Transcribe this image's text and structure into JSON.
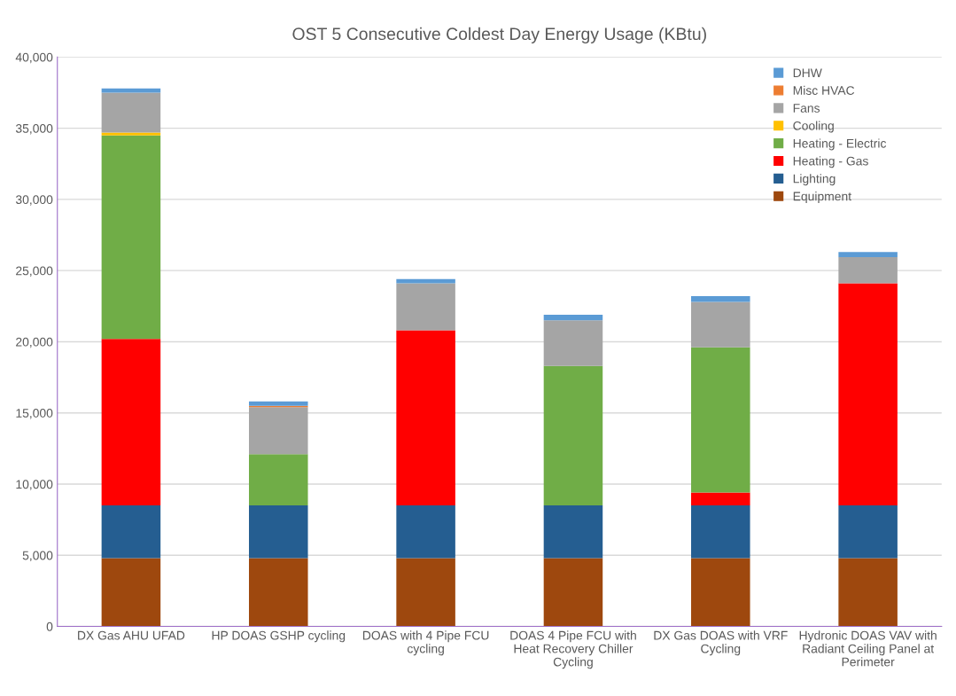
{
  "chart_data": {
    "type": "bar",
    "stacked": true,
    "title": "OST 5 Consecutive Coldest Day Energy Usage (KBtu)",
    "categories": [
      "DX Gas AHU UFAD",
      "HP DOAS GSHP cycling",
      "DOAS with 4 Pipe FCU cycling",
      "DOAS 4 Pipe FCU with Heat Recovery Chiller Cycling",
      "DX Gas DOAS with VRF Cycling",
      "Hydronic DOAS VAV with Radiant Ceiling Panel at Perimeter"
    ],
    "series": [
      {
        "name": "Equipment",
        "color": "#9e480e",
        "values": [
          4800,
          4800,
          4800,
          4800,
          4800,
          4800
        ]
      },
      {
        "name": "Lighting",
        "color": "#255e91",
        "values": [
          3700,
          3700,
          3700,
          3700,
          3700,
          3700
        ]
      },
      {
        "name": "Heating - Gas",
        "color": "#ff0000",
        "values": [
          11700,
          0,
          12300,
          0,
          900,
          15600
        ]
      },
      {
        "name": "Heating - Electric",
        "color": "#70ad47",
        "values": [
          14300,
          3600,
          0,
          9800,
          10200,
          0
        ]
      },
      {
        "name": "Cooling",
        "color": "#ffc000",
        "values": [
          200,
          0,
          0,
          0,
          0,
          0
        ]
      },
      {
        "name": "Fans",
        "color": "#a5a5a5",
        "values": [
          2800,
          3300,
          3300,
          3200,
          3200,
          1850
        ]
      },
      {
        "name": "Misc HVAC",
        "color": "#ed7d31",
        "values": [
          0,
          100,
          0,
          0,
          0,
          0
        ]
      },
      {
        "name": "DHW",
        "color": "#5b9bd5",
        "values": [
          300,
          300,
          300,
          400,
          400,
          350
        ]
      }
    ],
    "ylim": [
      0,
      40000
    ],
    "yticks": [
      {
        "value": 0,
        "label": "0"
      },
      {
        "value": 5000,
        "label": "5,000"
      },
      {
        "value": 10000,
        "label": "10,000"
      },
      {
        "value": 15000,
        "label": "15,000"
      },
      {
        "value": 20000,
        "label": "20,000"
      },
      {
        "value": 25000,
        "label": "25,000"
      },
      {
        "value": 30000,
        "label": "30,000"
      },
      {
        "value": 35000,
        "label": "35,000"
      },
      {
        "value": 40000,
        "label": "40,000"
      }
    ],
    "grid": "y",
    "legend": "top right"
  }
}
